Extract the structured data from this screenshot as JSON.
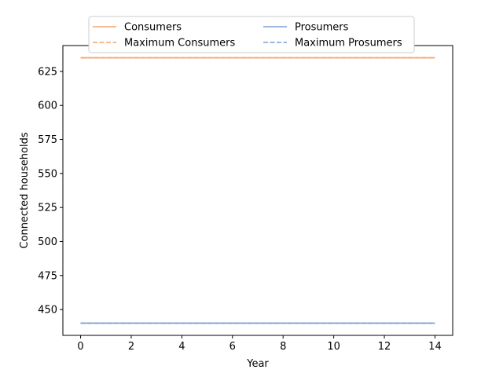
{
  "chart_data": {
    "type": "line",
    "title": "",
    "xlabel": "Year",
    "ylabel": "Connected households",
    "xlim": [
      -0.7,
      14.7
    ],
    "ylim": [
      431,
      644
    ],
    "x_ticks": [
      0,
      2,
      4,
      6,
      8,
      10,
      12,
      14
    ],
    "y_ticks": [
      450,
      475,
      500,
      525,
      550,
      575,
      600,
      625
    ],
    "x": [
      0,
      14
    ],
    "series": [
      {
        "name": "Consumers",
        "values": [
          635,
          635
        ],
        "color": "#f4a46c",
        "style": "solid"
      },
      {
        "name": "Maximum Consumers",
        "values": [
          635,
          635
        ],
        "color": "#f4a46c",
        "style": "dashed"
      },
      {
        "name": "Prosumers",
        "values": [
          440,
          440
        ],
        "color": "#7b9fd0",
        "style": "solid"
      },
      {
        "name": "Maximum Prosumers",
        "values": [
          440,
          440
        ],
        "color": "#7b9fd0",
        "style": "dashed"
      }
    ],
    "legend": {
      "placement": "top-center",
      "columns": 2
    },
    "grid": false
  }
}
